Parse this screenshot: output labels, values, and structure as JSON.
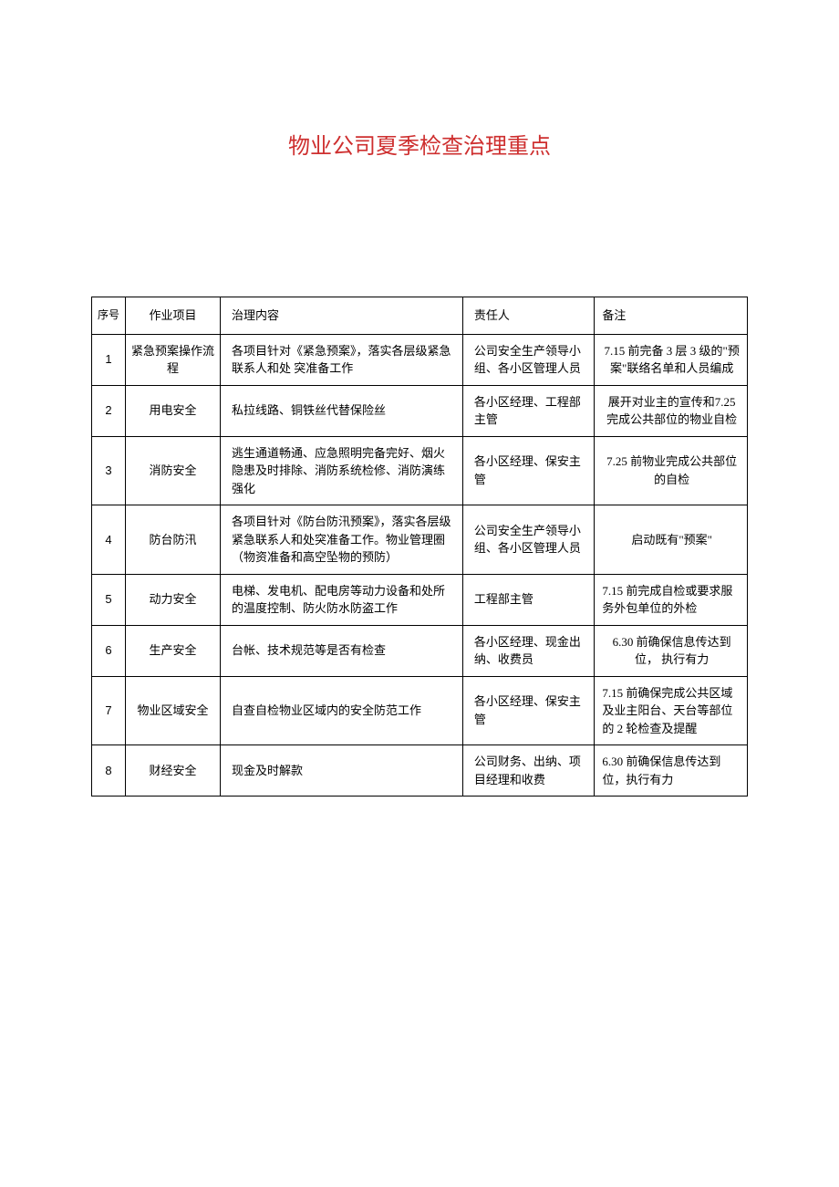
{
  "document": {
    "title": "物业公司夏季检查治理重点",
    "title_color": "#ce2f2f",
    "title_fontsize": 24,
    "border_color": "#000000",
    "background_color": "#ffffff",
    "text_color": "#000000",
    "cell_fontsize": 13
  },
  "table": {
    "columns": {
      "seq": "序号",
      "project": "作业项目",
      "content": "治理内容",
      "person": "责任人",
      "remark": "备注"
    },
    "column_widths": {
      "seq": 32,
      "project": 90,
      "content": 230,
      "person": 125,
      "remark": 145
    },
    "rows": [
      {
        "seq": "1",
        "project": "紧急预案操作流程",
        "content": "各项目针对《紧急预案》，落实各层级紧急联系人和处\n突准备工作",
        "person": "公司安全生产领导小组、各小区管理人员",
        "remark": "7.15 前完备 3 层 3 级的\"预案\"联络名单和人员编成"
      },
      {
        "seq": "2",
        "project": "用电安全",
        "content": "私拉线路、铜铁丝代替保险丝",
        "person": "各小区经理、工程部主管",
        "remark": "展开对业主的宣传和7.25 完成公共部位的物业自检"
      },
      {
        "seq": "3",
        "project": "消防安全",
        "content": "逃生通道畅通、应急照明完备完好、烟火隐患及时排除、消防系统检修、消防演练强化",
        "person": "各小区经理、保安主\n管",
        "remark": "7.25 前物业完成公共部位的自检"
      },
      {
        "seq": "4",
        "project": "防台防汛",
        "content": "各项目针对《防台防汛预案》，落实各层级紧急联系人和处突准备工作。物业管理圈（物资准备和高空坠物的预防）",
        "person": "公司安全生产领导小组、各小区管理人员",
        "remark": "启动既有\"预案\""
      },
      {
        "seq": "5",
        "project": "动力安全",
        "content": "电梯、发电机、配电房等动力设备和处所的温度控制、防火防水防盗工作",
        "person": "工程部主管",
        "remark": "7.15 前完成自检或要求服务外包单位的外检"
      },
      {
        "seq": "6",
        "project": "生产安全",
        "content": "台帐、技术规范等是否有检查",
        "person": "各小区经理、现金出纳、收费员",
        "remark": "6.30 前确保信息传达到位，\n执行有力"
      },
      {
        "seq": "7",
        "project": "物业区域安全",
        "content": "自查自检物业区域内的安全防范工作",
        "person": "各小区经理、保安主\n管",
        "remark": "7.15 前确保完成公共区域及业主阳台、天台等部位的 2 轮检查及提醒"
      },
      {
        "seq": "8",
        "project": "财经安全",
        "content": "现金及时解款",
        "person": "公司财务、出纳、项目经理和收费",
        "remark": "6.30 前确保信息传达到位，执行有力"
      }
    ]
  }
}
